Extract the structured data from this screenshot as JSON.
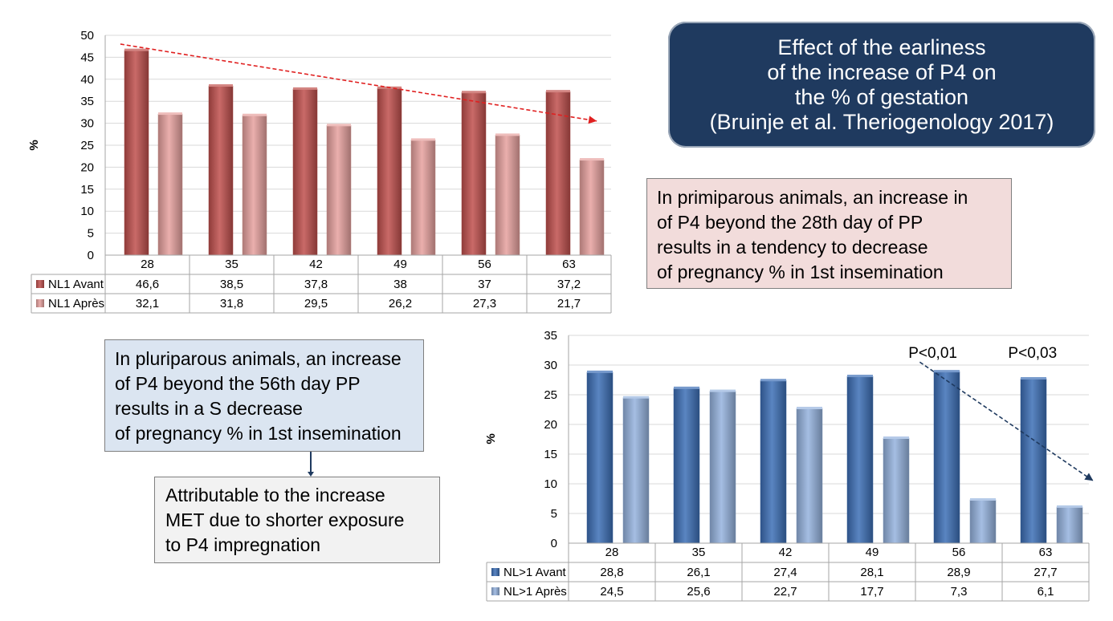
{
  "title": {
    "lines": [
      "Effect of the earliness",
      "of the increase of P4 on",
      "the % of gestation",
      "(Bruinje et al. Theriogenology 2017)"
    ]
  },
  "notes": {
    "primiparous": [
      "In primiparous animals, an increase in",
      "of P4 beyond the 28th day of PP",
      "results in a tendency to decrease",
      "of pregnancy % in 1st insemination"
    ],
    "pluriparous": [
      "In pluriparous animals, an increase",
      "of P4 beyond the 56th day PP",
      "results in a S decrease",
      "of pregnancy % in 1st insemination"
    ],
    "attributable": [
      "Attributable to the increase",
      "MET due to shorter exposure",
      "to P4 impregnation"
    ]
  },
  "chart_data": [
    {
      "type": "bar",
      "id": "primiparous",
      "ylabel": "%",
      "ylim": [
        0,
        50
      ],
      "ytick_step": 5,
      "yticks": [
        "0",
        "5",
        "10",
        "15",
        "20",
        "25",
        "30",
        "35",
        "40",
        "45",
        "50"
      ],
      "categories": [
        "28",
        "35",
        "42",
        "49",
        "56",
        "63"
      ],
      "series": [
        {
          "name": "NL1 Avant",
          "values": [
            46.6,
            38.5,
            37.8,
            38,
            37,
            37.2
          ],
          "labels": [
            "46,6",
            "38,5",
            "37,8",
            "38",
            "37",
            "37,2"
          ],
          "color": "#c0504d"
        },
        {
          "name": "NL1 Après",
          "values": [
            32.1,
            31.8,
            29.5,
            26.2,
            27.3,
            21.7
          ],
          "labels": [
            "32,1",
            "31,8",
            "29,5",
            "26,2",
            "27,3",
            "21,7"
          ],
          "color": "#e6a19e"
        }
      ],
      "trend": {
        "from": 48,
        "to": 30.5,
        "color": "#e02020"
      },
      "annotations": []
    },
    {
      "type": "bar",
      "id": "pluriparous",
      "ylabel": "%",
      "ylim": [
        0,
        35
      ],
      "ytick_step": 5,
      "yticks": [
        "0",
        "5",
        "10",
        "15",
        "20",
        "25",
        "30",
        "35"
      ],
      "categories": [
        "28",
        "35",
        "42",
        "49",
        "56",
        "63"
      ],
      "series": [
        {
          "name": "NL>1 Avant",
          "values": [
            28.8,
            26.1,
            27.4,
            28.1,
            28.9,
            27.7
          ],
          "labels": [
            "28,8",
            "26,1",
            "27,4",
            "28,1",
            "28,9",
            "27,7"
          ],
          "color": "#3d6fb6"
        },
        {
          "name": "NL>1 Après",
          "values": [
            24.5,
            25.6,
            22.7,
            17.7,
            7.3,
            6.1
          ],
          "labels": [
            "24,5",
            "25,6",
            "22,7",
            "17,7",
            "7,3",
            "6,1"
          ],
          "color": "#95b3de"
        }
      ],
      "trend": {
        "from": 30.5,
        "to": 10.5,
        "color": "#1f3a5f"
      },
      "annotations": [
        "P<0,01",
        "P<0,03"
      ]
    }
  ]
}
